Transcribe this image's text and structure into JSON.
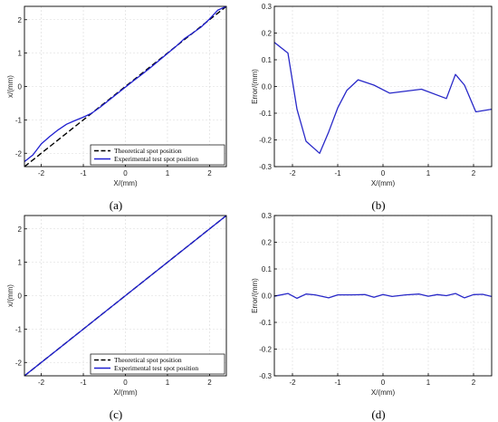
{
  "colors": {
    "theoretical": "#000000",
    "experimental": "#1f1fd0",
    "error": "#2828c8",
    "grid": "#d9d9d9"
  },
  "chart_data": [
    {
      "type": "line",
      "caption": "(a)",
      "xlabel": "X/(mm)",
      "ylabel": "x/(mm)",
      "xlim": [
        -2.4,
        2.4
      ],
      "ylim": [
        -2.4,
        2.4
      ],
      "xticks": [
        -2,
        -1,
        0,
        1,
        2
      ],
      "yticks": [
        -2,
        -1,
        0,
        1,
        2
      ],
      "grid": true,
      "legend_position": "bottom-right",
      "series": [
        {
          "name": "Theoretical  spot  position",
          "style": "dashed",
          "color": "#000000",
          "x": [
            -2.4,
            2.4
          ],
          "y": [
            -2.4,
            2.4
          ]
        },
        {
          "name": "Experimental  test  spot  position",
          "style": "solid",
          "color": "#1f1fd0",
          "x": [
            -2.4,
            -2.2,
            -2.0,
            -1.8,
            -1.6,
            -1.4,
            -1.2,
            -1.0,
            -0.8,
            -0.6,
            -0.4,
            -0.2,
            0.0,
            0.2,
            0.4,
            0.6,
            0.8,
            1.0,
            1.2,
            1.4,
            1.6,
            1.8,
            2.0,
            2.2,
            2.4
          ],
          "y": [
            -2.25,
            -2.05,
            -1.72,
            -1.5,
            -1.3,
            -1.13,
            -1.02,
            -0.92,
            -0.8,
            -0.62,
            -0.42,
            -0.22,
            -0.02,
            0.18,
            0.37,
            0.57,
            0.78,
            0.99,
            1.2,
            1.43,
            1.6,
            1.78,
            2.02,
            2.29,
            2.4
          ]
        }
      ]
    },
    {
      "type": "line",
      "caption": "(b)",
      "xlabel": "X/(mm)",
      "ylabel": "Error/(mm)",
      "xlim": [
        -2.4,
        2.4
      ],
      "ylim": [
        -0.3,
        0.3
      ],
      "xticks": [
        -2,
        -1,
        0,
        1,
        2
      ],
      "yticks": [
        -0.3,
        -0.2,
        -0.1,
        0.0,
        0.1,
        0.2,
        0.3
      ],
      "ytick_labels": [
        "-0.3",
        "-0.2",
        "-0.1",
        "0.0",
        "0.1",
        "0.2",
        "0.3"
      ],
      "grid": true,
      "series": [
        {
          "color": "#2828c8",
          "x": [
            -2.4,
            -2.1,
            -1.9,
            -1.7,
            -1.4,
            -1.2,
            -1.0,
            -0.8,
            -0.55,
            -0.2,
            0.15,
            0.85,
            1.4,
            1.6,
            1.8,
            2.05,
            2.4
          ],
          "y": [
            0.165,
            0.125,
            -0.085,
            -0.205,
            -0.25,
            -0.17,
            -0.08,
            -0.015,
            0.025,
            0.005,
            -0.025,
            -0.01,
            -0.045,
            0.045,
            0.005,
            -0.095,
            -0.085
          ]
        }
      ]
    },
    {
      "type": "line",
      "caption": "(c)",
      "xlabel": "X/(mm)",
      "ylabel": "x/(mm)",
      "xlim": [
        -2.4,
        2.4
      ],
      "ylim": [
        -2.4,
        2.4
      ],
      "xticks": [
        -2,
        -1,
        0,
        1,
        2
      ],
      "yticks": [
        -2,
        -1,
        0,
        1,
        2
      ],
      "grid": true,
      "legend_position": "bottom-right",
      "series": [
        {
          "name": "Theoretical  spot  position",
          "style": "dashed",
          "color": "#000000",
          "x": [
            -2.4,
            2.4
          ],
          "y": [
            -2.4,
            2.4
          ]
        },
        {
          "name": "Experimental  test  spot  position",
          "style": "solid",
          "color": "#1f1fd0",
          "x": [
            -2.4,
            -1.2,
            0.0,
            1.2,
            2.4
          ],
          "y": [
            -2.4,
            -1.2,
            0.0,
            1.2,
            2.4
          ]
        }
      ]
    },
    {
      "type": "line",
      "caption": "(d)",
      "xlabel": "X/(mm)",
      "ylabel": "Error/(mm)",
      "xlim": [
        -2.4,
        2.4
      ],
      "ylim": [
        -0.3,
        0.3
      ],
      "xticks": [
        -2,
        -1,
        0,
        1,
        2
      ],
      "yticks": [
        -0.3,
        -0.2,
        -0.1,
        0.0,
        0.1,
        0.2,
        0.3
      ],
      "ytick_labels": [
        "-0.3",
        "-0.2",
        "-0.1",
        "0.0",
        "0.1",
        "0.2",
        "0.3"
      ],
      "grid": true,
      "series": [
        {
          "color": "#2828c8",
          "x": [
            -2.4,
            -2.1,
            -1.9,
            -1.7,
            -1.5,
            -1.2,
            -1.0,
            -0.7,
            -0.4,
            -0.2,
            0.0,
            0.2,
            0.5,
            0.8,
            1.0,
            1.2,
            1.4,
            1.6,
            1.8,
            2.0,
            2.2,
            2.4
          ],
          "y": [
            -0.002,
            0.008,
            -0.01,
            0.006,
            0.003,
            -0.008,
            0.003,
            0.003,
            0.004,
            -0.006,
            0.004,
            -0.003,
            0.003,
            0.006,
            -0.002,
            0.004,
            0.0,
            0.008,
            -0.008,
            0.004,
            0.005,
            -0.003
          ]
        }
      ]
    }
  ]
}
